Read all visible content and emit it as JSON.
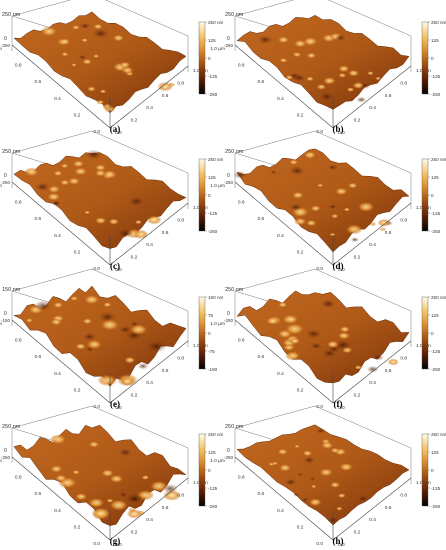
{
  "colormap": {
    "stops": [
      "#fffbe8",
      "#f5c56a",
      "#d98a2a",
      "#a04a10",
      "#5a1e06",
      "#000000"
    ]
  },
  "panels": [
    {
      "label": "(a)",
      "z_top": "250",
      "z_top_unit": "250 nm",
      "z_mid": "0",
      "z_neg": "-250",
      "x_ticks": [
        "0.0",
        "0.2",
        "0.4",
        "0.6",
        "0.8",
        "1.0 µm"
      ],
      "y_ticks": [
        "0.0",
        "0.2",
        "0.4",
        "0.6",
        "0.8",
        "1.0 µm"
      ],
      "cb_ticks": [
        "250 nm",
        "125",
        "0",
        "-125",
        "-250"
      ]
    },
    {
      "label": "(b)",
      "z_top": "250",
      "z_top_unit": "250 nm",
      "z_mid": "0",
      "z_neg": "-250",
      "x_ticks": [
        "0.0",
        "0.2",
        "0.4",
        "0.6",
        "0.8",
        "1.0 µm"
      ],
      "y_ticks": [
        "0.0",
        "0.2",
        "0.4",
        "0.6",
        "0.8",
        "1.0 µm"
      ],
      "cb_ticks": [
        "250 nm",
        "125",
        "0",
        "-125",
        "-250"
      ]
    },
    {
      "label": "(c)",
      "z_top": "250",
      "z_top_unit": "250 nm",
      "z_mid": "0",
      "z_neg": "-250",
      "x_ticks": [
        "0.0",
        "0.2",
        "0.4",
        "0.6",
        "0.8",
        "1.0 µm"
      ],
      "y_ticks": [
        "0.0",
        "0.2",
        "0.4",
        "0.6",
        "0.8",
        "1.0 µm"
      ],
      "cb_ticks": [
        "250 nm",
        "125",
        "0",
        "-125",
        "-250"
      ]
    },
    {
      "label": "(d)",
      "z_top": "250",
      "z_top_unit": "250 nm",
      "z_mid": "0",
      "z_neg": "-250",
      "x_ticks": [
        "0.0",
        "0.2",
        "0.4",
        "0.6",
        "0.8",
        "1.0 µm"
      ],
      "y_ticks": [
        "0.0",
        "0.2",
        "0.4",
        "0.6",
        "0.8",
        "1.0 µm"
      ],
      "cb_ticks": [
        "250 nm",
        "125",
        "0",
        "-125",
        "-250"
      ]
    },
    {
      "label": "(e)",
      "z_top": "150",
      "z_top_unit": "150 nm",
      "z_mid": "0",
      "z_neg": "-150",
      "x_ticks": [
        "0.0",
        "0.2",
        "0.4",
        "0.6",
        "0.8",
        "1.0 µm"
      ],
      "y_ticks": [
        "0.0",
        "0.2",
        "0.4",
        "0.6",
        "0.8",
        "1.0 µm"
      ],
      "cb_ticks": [
        "150 nm",
        "75",
        "0",
        "-75",
        "-150"
      ]
    },
    {
      "label": "(f)",
      "z_top": "250",
      "z_top_unit": "250 nm",
      "z_mid": "0",
      "z_neg": "-250",
      "x_ticks": [
        "0.0",
        "0.2",
        "0.4",
        "0.6",
        "0.8",
        "1.0 µm"
      ],
      "y_ticks": [
        "0.0",
        "0.2",
        "0.4",
        "0.6",
        "0.8",
        "1.0 µm"
      ],
      "cb_ticks": [
        "250 nm",
        "125",
        "0",
        "-125",
        "-250"
      ]
    },
    {
      "label": "(g)",
      "z_top": "250",
      "z_top_unit": "250 nm",
      "z_mid": "0",
      "z_neg": "-250",
      "x_ticks": [
        "0.0",
        "0.2",
        "0.4",
        "0.6",
        "0.8",
        "1.0 µm"
      ],
      "y_ticks": [
        "0.0",
        "0.2",
        "0.4",
        "0.6",
        "0.8",
        "1.0 µm"
      ],
      "cb_ticks": [
        "250 nm",
        "125",
        "0",
        "-125",
        "-250"
      ]
    },
    {
      "label": "(h)",
      "z_top": "250",
      "z_top_unit": "250 nm",
      "z_mid": "0",
      "z_neg": "-250",
      "x_ticks": [
        "0.0",
        "0.2",
        "0.4",
        "0.6",
        "0.8",
        "1.0 µm"
      ],
      "y_ticks": [
        "0.0",
        "0.2",
        "0.4",
        "0.6",
        "0.8",
        "1.0 µm"
      ],
      "cb_ticks": [
        "250 nm",
        "125",
        "0",
        "-125",
        "-250"
      ]
    }
  ]
}
